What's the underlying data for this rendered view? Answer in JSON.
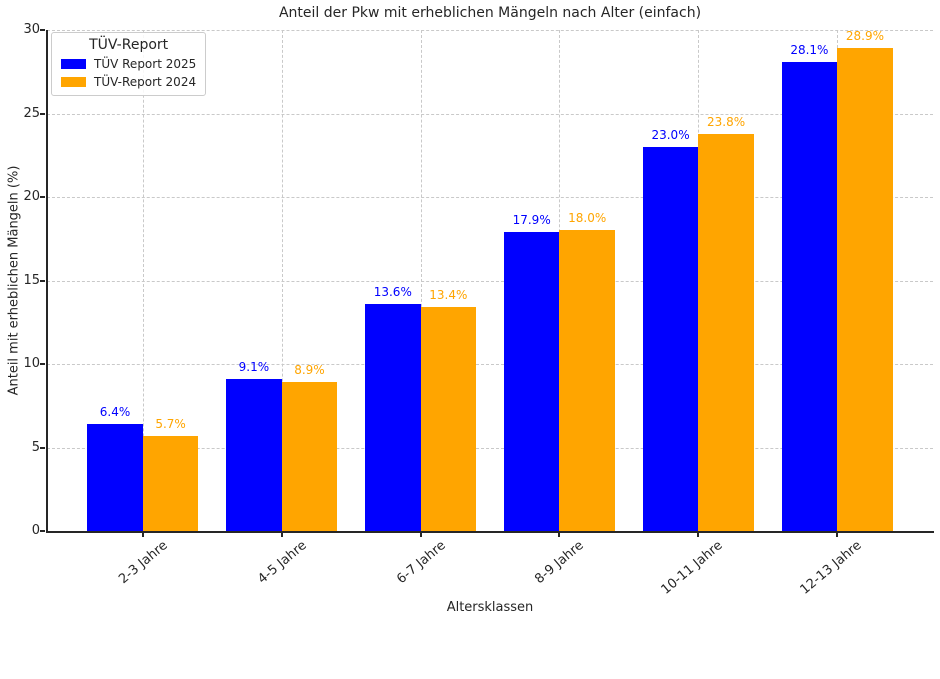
{
  "chart_data": {
    "type": "bar",
    "title": "Anteil der Pkw mit erheblichen Mängeln nach Alter (einfach)",
    "xlabel": "Altersklassen",
    "ylabel": "Anteil mit erheblichen Mängeln (%)",
    "categories": [
      "2-3 Jahre",
      "4-5 Jahre",
      "6-7 Jahre",
      "8-9 Jahre",
      "10-11 Jahre",
      "12-13 Jahre"
    ],
    "series": [
      {
        "name": "TÜV Report 2025",
        "color": "#0000ff",
        "values": [
          6.4,
          9.1,
          13.6,
          17.9,
          23.0,
          28.1
        ],
        "value_labels": [
          "6.4%",
          "9.1%",
          "13.6%",
          "17.9%",
          "23.0%",
          "28.1%"
        ]
      },
      {
        "name": "TÜV-Report 2024",
        "color": "#ffa500",
        "values": [
          5.7,
          8.9,
          13.4,
          18.0,
          23.8,
          28.9
        ],
        "value_labels": [
          "5.7%",
          "8.9%",
          "13.4%",
          "18.0%",
          "23.8%",
          "28.9%"
        ]
      }
    ],
    "ylim": [
      0,
      30
    ],
    "yticks": [
      0,
      5,
      10,
      15,
      20,
      25,
      30
    ],
    "grid": true,
    "legend": {
      "title": "TÜV-Report",
      "position": "upper left"
    }
  },
  "colors": {
    "grid": "#c9c9c9",
    "axis": "#262626",
    "background": "#ffffff"
  }
}
